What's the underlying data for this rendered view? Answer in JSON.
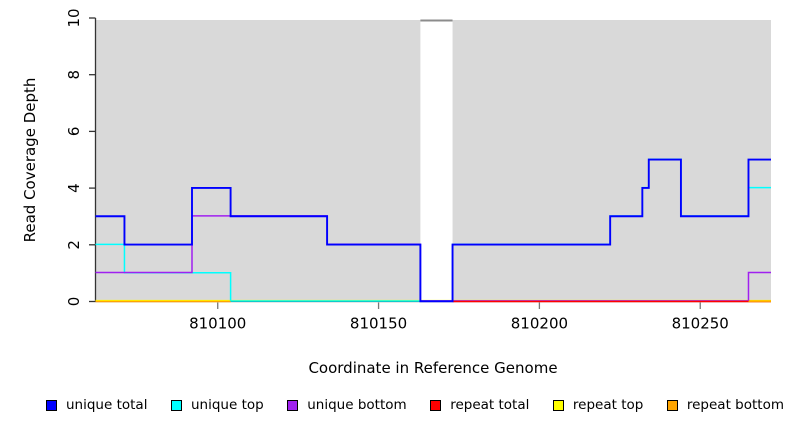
{
  "chart_data": {
    "type": "line",
    "subtype": "step-coverage",
    "title": "",
    "xlabel": "Coordinate in Reference Genome",
    "ylabel": "Read Coverage Depth",
    "xlim": [
      810062,
      810272
    ],
    "ylim": [
      0,
      10
    ],
    "x_ticks": [
      810100,
      810150,
      810200,
      810250
    ],
    "y_ticks": [
      0,
      2,
      4,
      6,
      8,
      10
    ],
    "grid": false,
    "legend_position": "bottom",
    "plot_background": "#d9d9d9",
    "axis_color": "#333333",
    "tick_color": "#777777",
    "gap_region": {
      "from": 810163,
      "to": 810173,
      "fill": "#ffffff",
      "cap_color": "#8c8c8c"
    },
    "series": [
      {
        "name": "unique total",
        "color": "#0000FF",
        "segments": [
          [
            810062,
            810071,
            3
          ],
          [
            810071,
            810092,
            2
          ],
          [
            810092,
            810104,
            4
          ],
          [
            810104,
            810134,
            3
          ],
          [
            810134,
            810163,
            2
          ],
          [
            810163,
            810173,
            0
          ],
          [
            810173,
            810222,
            2
          ],
          [
            810222,
            810232,
            3
          ],
          [
            810232,
            810234,
            4
          ],
          [
            810234,
            810244,
            5
          ],
          [
            810244,
            810265,
            3
          ],
          [
            810265,
            810272,
            5
          ]
        ]
      },
      {
        "name": "unique top",
        "color": "#00FFFF",
        "segments": [
          [
            810062,
            810071,
            2
          ],
          [
            810071,
            810104,
            1
          ],
          [
            810104,
            810173,
            0
          ],
          [
            810173,
            810222,
            2
          ],
          [
            810222,
            810232,
            3
          ],
          [
            810232,
            810234,
            4
          ],
          [
            810234,
            810244,
            5
          ],
          [
            810244,
            810265,
            3
          ],
          [
            810265,
            810272,
            4
          ]
        ]
      },
      {
        "name": "unique bottom",
        "color": "#A020F0",
        "segments": [
          [
            810062,
            810092,
            1
          ],
          [
            810092,
            810134,
            3
          ],
          [
            810134,
            810163,
            2
          ],
          [
            810163,
            810265,
            0
          ],
          [
            810265,
            810272,
            1
          ]
        ]
      },
      {
        "name": "repeat total",
        "color": "#FF0000",
        "segments": [
          [
            810173,
            810272,
            0
          ]
        ]
      },
      {
        "name": "repeat top",
        "color": "#FFFF00",
        "segments": [
          [
            810062,
            810272,
            0
          ]
        ]
      },
      {
        "name": "repeat bottom",
        "color": "#FFA500",
        "segments": [
          [
            810062,
            810104,
            0
          ],
          [
            810265,
            810272,
            0
          ]
        ]
      }
    ]
  },
  "legend": {
    "items": [
      {
        "label": "unique total",
        "color": "#0000FF"
      },
      {
        "label": "unique top",
        "color": "#00FFFF"
      },
      {
        "label": "unique bottom",
        "color": "#A020F0"
      },
      {
        "label": "repeat total",
        "color": "#FF0000"
      },
      {
        "label": "repeat top",
        "color": "#FFFF00"
      },
      {
        "label": "repeat bottom",
        "color": "#FFA500"
      }
    ]
  }
}
